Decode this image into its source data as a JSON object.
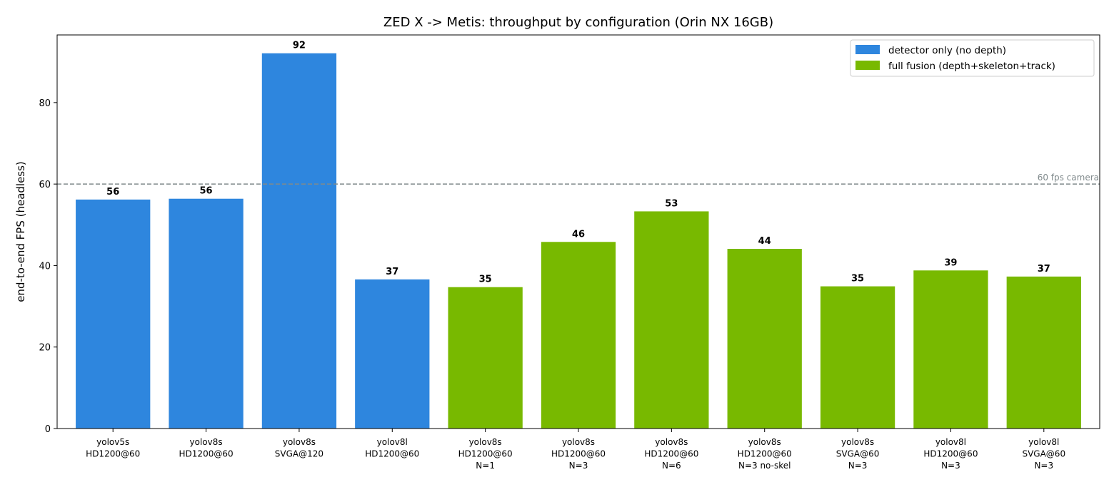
{
  "chart_data": {
    "type": "bar",
    "title": "ZED X -> Metis: throughput by configuration (Orin NX 16GB)",
    "xlabel": "",
    "ylabel": "end-to-end FPS (headless)",
    "ylim": [
      0,
      96.6
    ],
    "yticks": [
      0,
      20,
      40,
      60,
      80
    ],
    "grid": false,
    "legend_position": "top-right",
    "categories": [
      [
        "yolov5s",
        "HD1200@60"
      ],
      [
        "yolov8s",
        "HD1200@60"
      ],
      [
        "yolov8s",
        "SVGA@120"
      ],
      [
        "yolov8l",
        "HD1200@60"
      ],
      [
        "yolov8s",
        "HD1200@60",
        "N=1"
      ],
      [
        "yolov8s",
        "HD1200@60",
        "N=3"
      ],
      [
        "yolov8s",
        "HD1200@60",
        "N=6"
      ],
      [
        "yolov8s",
        "HD1200@60",
        "N=3 no-skel"
      ],
      [
        "yolov8s",
        "SVGA@60",
        "N=3"
      ],
      [
        "yolov8l",
        "HD1200@60",
        "N=3"
      ],
      [
        "yolov8l",
        "SVGA@60",
        "N=3"
      ]
    ],
    "values": [
      56.2,
      56.4,
      92.1,
      36.6,
      34.7,
      45.8,
      53.3,
      44.1,
      34.9,
      38.8,
      37.3
    ],
    "data_labels": [
      "56",
      "56",
      "92",
      "37",
      "35",
      "46",
      "53",
      "44",
      "35",
      "39",
      "37"
    ],
    "series_index": [
      0,
      0,
      0,
      0,
      1,
      1,
      1,
      1,
      1,
      1,
      1
    ],
    "series": [
      {
        "name": "detector only (no depth)",
        "color": "#2e86de"
      },
      {
        "name": "full fusion (depth+skeleton+track)",
        "color": "#78b900"
      }
    ],
    "reference_line": {
      "y": 60,
      "label": "60 fps camera",
      "color": "#808a8c"
    }
  }
}
